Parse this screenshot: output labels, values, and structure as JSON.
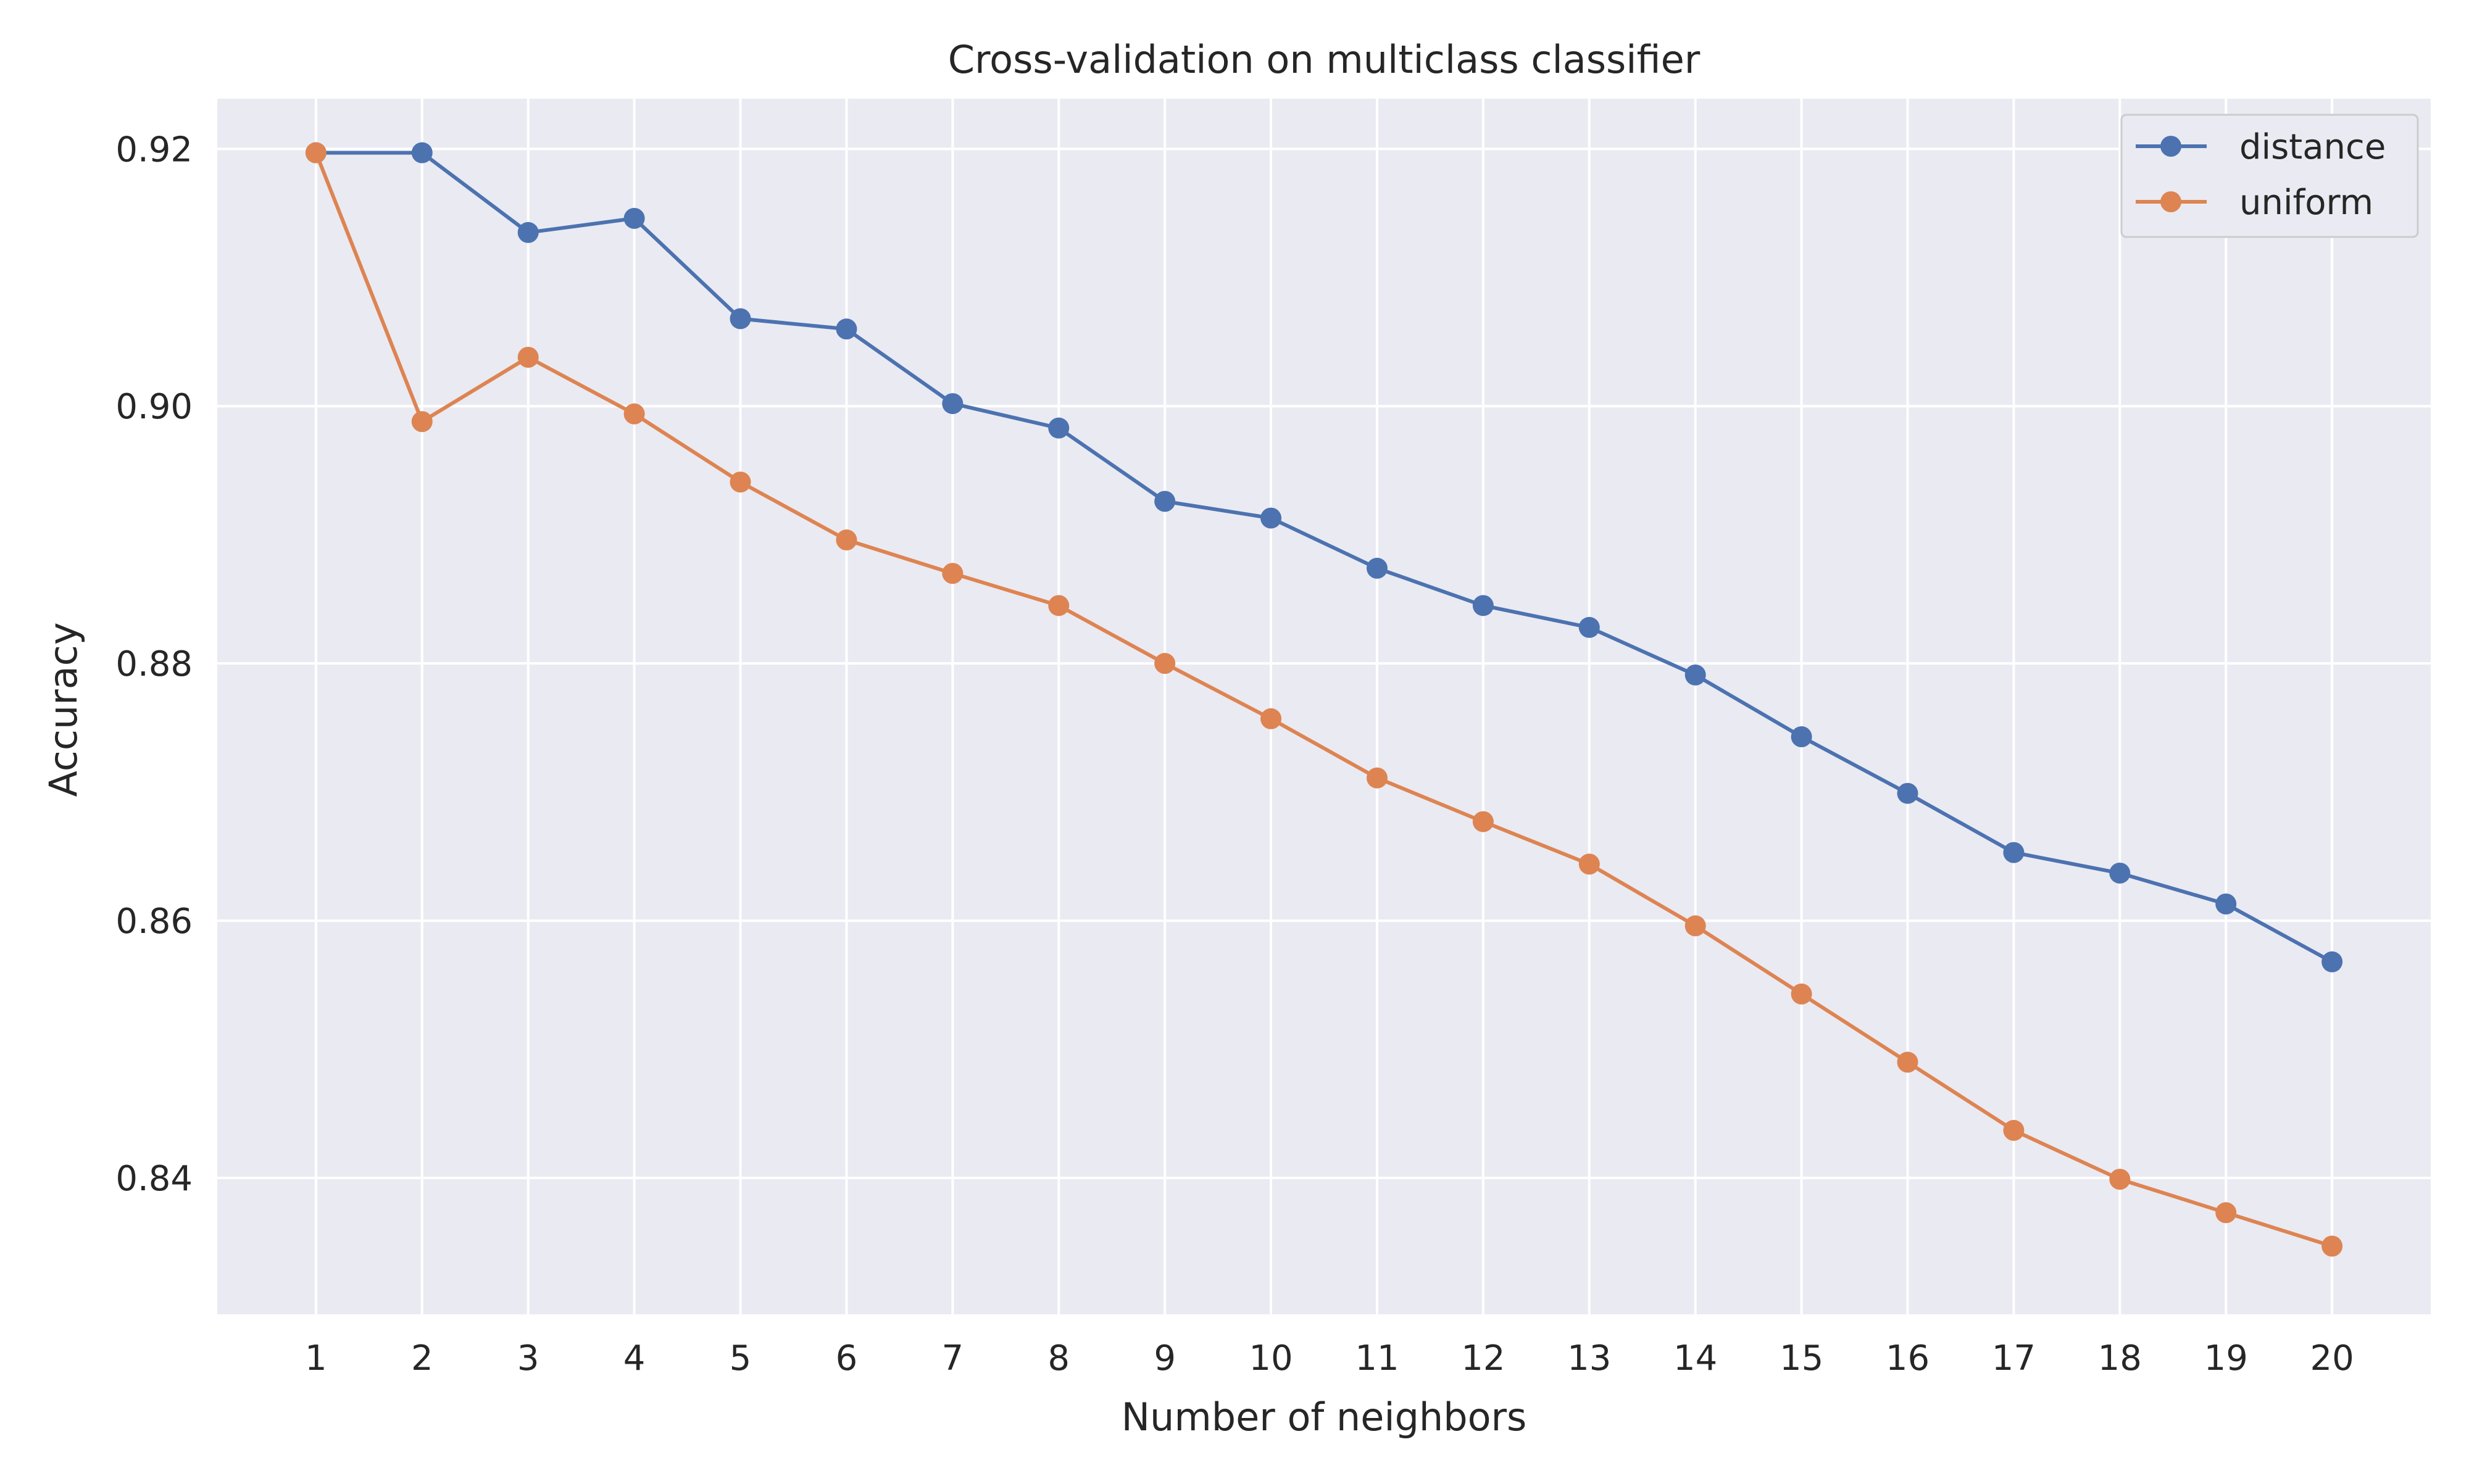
{
  "chart_data": {
    "type": "line",
    "title": "Cross-validation on multiclass classifier",
    "xlabel": "Number of neighbors",
    "ylabel": "Accuracy",
    "x": [
      1,
      2,
      3,
      4,
      5,
      6,
      7,
      8,
      9,
      10,
      11,
      12,
      13,
      14,
      15,
      16,
      17,
      18,
      19,
      20
    ],
    "xticks": [
      "1",
      "2",
      "3",
      "4",
      "5",
      "6",
      "7",
      "8",
      "9",
      "10",
      "11",
      "12",
      "13",
      "14",
      "15",
      "16",
      "17",
      "18",
      "19",
      "20"
    ],
    "yticks": [
      "0.84",
      "0.86",
      "0.88",
      "0.90",
      "0.92"
    ],
    "ytick_values": [
      0.84,
      0.86,
      0.88,
      0.9,
      0.92
    ],
    "xlim": [
      0.07,
      20.93
    ],
    "ylim": [
      0.8294,
      0.9239
    ],
    "grid": true,
    "legend_position": "top-right",
    "series": [
      {
        "name": "distance",
        "color": "#4c72b0",
        "values": [
          0.9197,
          0.9197,
          0.9135,
          0.9146,
          0.9068,
          0.906,
          0.9002,
          0.8983,
          0.8926,
          0.8913,
          0.8874,
          0.8845,
          0.8828,
          0.8791,
          0.8743,
          0.8699,
          0.8653,
          0.8637,
          0.8613,
          0.8568
        ]
      },
      {
        "name": "uniform",
        "color": "#dd8452",
        "values": [
          0.9197,
          0.8988,
          0.9038,
          0.8994,
          0.8941,
          0.8896,
          0.887,
          0.8845,
          0.88,
          0.8757,
          0.8711,
          0.8677,
          0.8644,
          0.8596,
          0.8543,
          0.849,
          0.8437,
          0.8399,
          0.8373,
          0.8347
        ]
      }
    ]
  },
  "style": {
    "plot_background": "#eaeaf2",
    "grid_color": "#ffffff",
    "legend_background": "#eaeaf2",
    "legend_border": "#cccccc"
  }
}
